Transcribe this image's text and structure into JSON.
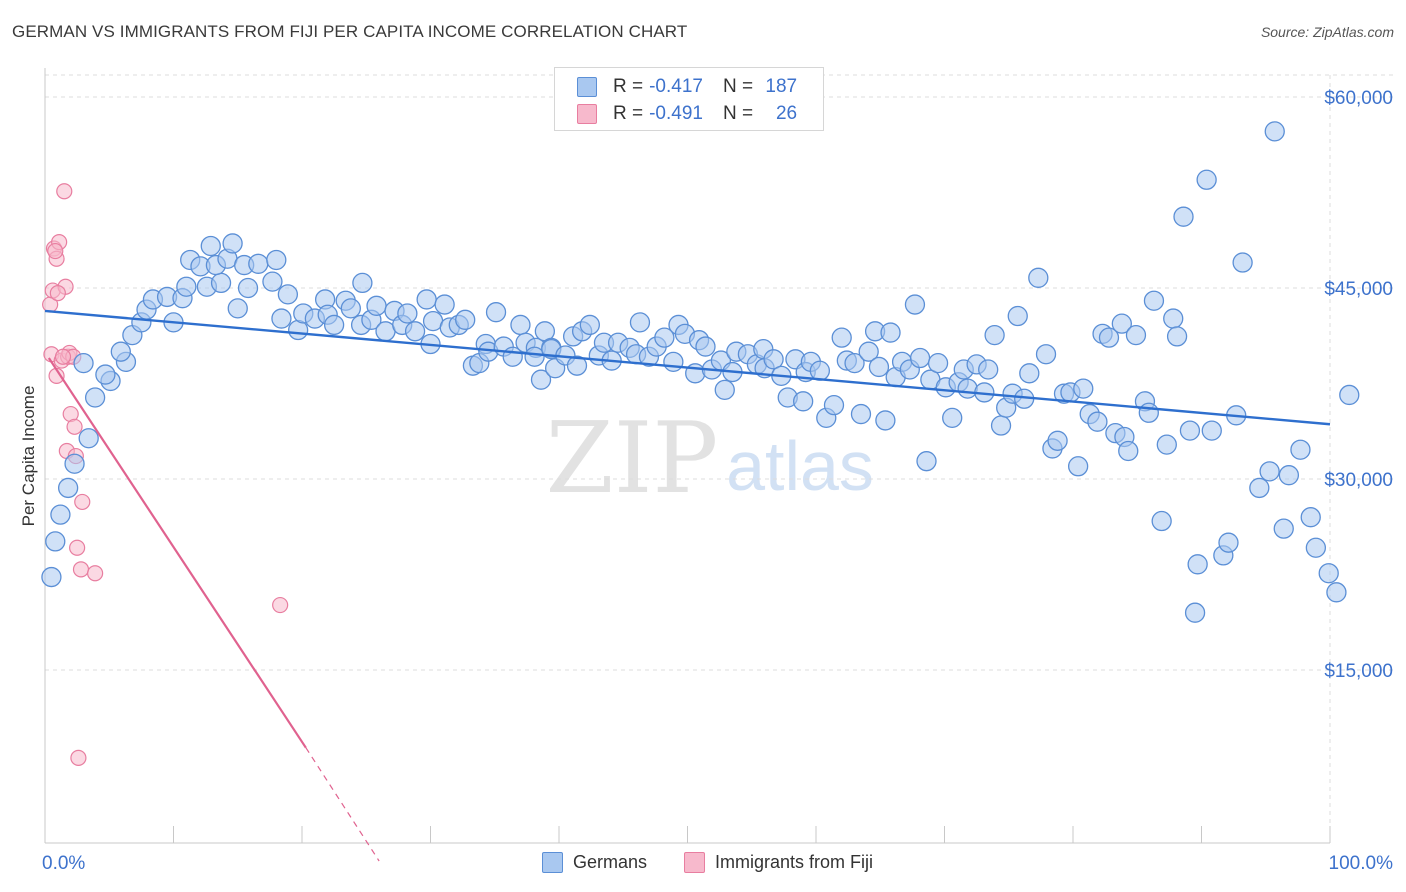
{
  "header": {
    "title": "GERMAN VS IMMIGRANTS FROM FIJI PER CAPITA INCOME CORRELATION CHART",
    "source": "Source: ZipAtlas.com"
  },
  "legend_top": {
    "rows": [
      {
        "r_label": "R =",
        "r_value": "-0.417",
        "n_label": "N =",
        "n_value": "187"
      },
      {
        "r_label": "R =",
        "r_value": "-0.491",
        "n_label": "N =",
        "n_value": "26"
      }
    ]
  },
  "legend_bottom": {
    "items": [
      "Germans",
      "Immigrants from Fiji"
    ]
  },
  "watermark": {
    "zip": "ZIP",
    "atlas": "atlas"
  },
  "colors": {
    "germans_fill": "#a9c8f0",
    "germans_stroke": "#5b8fd6",
    "germans_line": "#2e6fce",
    "fiji_fill": "#f7b9cc",
    "fiji_stroke": "#e87ea0",
    "fiji_line": "#e0628f",
    "tick_label": "#3d72cc",
    "grid": "#dcdcdc"
  },
  "chart_data": {
    "type": "scatter",
    "ylabel": "Per Capita Income",
    "xlabel": "",
    "x_tick_labels": [
      "0.0%",
      "100.0%"
    ],
    "y_ticks": [
      15000,
      30000,
      45000,
      60000
    ],
    "y_tick_labels": [
      "$15,000",
      "$30,000",
      "$45,000",
      "$60,000"
    ],
    "xlim": [
      0,
      100
    ],
    "ylim": [
      1000,
      62500
    ],
    "grid": true,
    "series": [
      {
        "name": "Germans",
        "trend": {
          "x": [
            0,
            100
          ],
          "y": [
            43200,
            34300
          ]
        },
        "points": [
          [
            0.5,
            22300
          ],
          [
            0.8,
            25100
          ],
          [
            1.2,
            27200
          ],
          [
            1.8,
            29300
          ],
          [
            2.3,
            31200
          ],
          [
            3.4,
            33200
          ],
          [
            3.9,
            36400
          ],
          [
            3.0,
            39100
          ],
          [
            5.1,
            37700
          ],
          [
            4.7,
            38200
          ],
          [
            6.3,
            39200
          ],
          [
            5.9,
            40000
          ],
          [
            6.8,
            41300
          ],
          [
            7.5,
            42300
          ],
          [
            7.9,
            43300
          ],
          [
            8.4,
            44100
          ],
          [
            9.5,
            44300
          ],
          [
            10.0,
            42300
          ],
          [
            10.7,
            44200
          ],
          [
            11.0,
            45100
          ],
          [
            11.3,
            47200
          ],
          [
            12.1,
            46700
          ],
          [
            12.6,
            45100
          ],
          [
            12.9,
            48300
          ],
          [
            13.7,
            45400
          ],
          [
            13.3,
            46800
          ],
          [
            14.2,
            47300
          ],
          [
            14.6,
            48500
          ],
          [
            15.5,
            46800
          ],
          [
            15.0,
            43400
          ],
          [
            15.8,
            45000
          ],
          [
            16.6,
            46900
          ],
          [
            17.7,
            45500
          ],
          [
            18.0,
            47200
          ],
          [
            18.4,
            42600
          ],
          [
            18.9,
            44500
          ],
          [
            19.7,
            41700
          ],
          [
            20.1,
            43000
          ],
          [
            21.0,
            42600
          ],
          [
            21.8,
            44100
          ],
          [
            22.0,
            42900
          ],
          [
            22.5,
            42100
          ],
          [
            23.4,
            44000
          ],
          [
            23.8,
            43400
          ],
          [
            24.6,
            42100
          ],
          [
            24.7,
            45400
          ],
          [
            25.4,
            42500
          ],
          [
            25.8,
            43600
          ],
          [
            26.5,
            41600
          ],
          [
            27.2,
            43200
          ],
          [
            27.8,
            42100
          ],
          [
            28.2,
            43000
          ],
          [
            28.8,
            41600
          ],
          [
            29.7,
            44100
          ],
          [
            30.2,
            42400
          ],
          [
            30.0,
            40600
          ],
          [
            31.1,
            43700
          ],
          [
            31.5,
            41900
          ],
          [
            32.2,
            42100
          ],
          [
            32.7,
            42500
          ],
          [
            33.3,
            38900
          ],
          [
            33.8,
            39100
          ],
          [
            34.3,
            40600
          ],
          [
            34.5,
            40000
          ],
          [
            35.1,
            43100
          ],
          [
            35.7,
            40400
          ],
          [
            36.4,
            39600
          ],
          [
            37.0,
            42100
          ],
          [
            37.4,
            40700
          ],
          [
            38.2,
            40300
          ],
          [
            38.1,
            39600
          ],
          [
            38.6,
            37800
          ],
          [
            38.9,
            41600
          ],
          [
            39.4,
            40300
          ],
          [
            39.7,
            38700
          ],
          [
            39.4,
            40200
          ],
          [
            40.5,
            39700
          ],
          [
            41.1,
            41200
          ],
          [
            41.4,
            38900
          ],
          [
            41.8,
            41600
          ],
          [
            42.4,
            42100
          ],
          [
            43.1,
            39700
          ],
          [
            43.5,
            40700
          ],
          [
            44.1,
            39300
          ],
          [
            44.6,
            40700
          ],
          [
            45.5,
            40300
          ],
          [
            46.0,
            39800
          ],
          [
            46.3,
            42300
          ],
          [
            47.0,
            39600
          ],
          [
            47.6,
            40400
          ],
          [
            48.2,
            41100
          ],
          [
            48.9,
            39200
          ],
          [
            49.3,
            42100
          ],
          [
            49.8,
            41400
          ],
          [
            50.6,
            38300
          ],
          [
            50.9,
            40900
          ],
          [
            51.4,
            40400
          ],
          [
            51.9,
            38600
          ],
          [
            52.6,
            39300
          ],
          [
            52.9,
            37000
          ],
          [
            53.5,
            38400
          ],
          [
            53.8,
            40000
          ],
          [
            54.7,
            39800
          ],
          [
            55.4,
            39000
          ],
          [
            55.9,
            40200
          ],
          [
            56.0,
            38700
          ],
          [
            56.7,
            39400
          ],
          [
            57.3,
            38100
          ],
          [
            57.8,
            36400
          ],
          [
            58.4,
            39400
          ],
          [
            59.0,
            36100
          ],
          [
            59.2,
            38400
          ],
          [
            59.6,
            39200
          ],
          [
            60.3,
            38500
          ],
          [
            60.8,
            34800
          ],
          [
            61.4,
            35800
          ],
          [
            62.0,
            41100
          ],
          [
            62.4,
            39300
          ],
          [
            63.0,
            39100
          ],
          [
            63.5,
            35100
          ],
          [
            64.1,
            40000
          ],
          [
            64.6,
            41600
          ],
          [
            64.9,
            38800
          ],
          [
            65.4,
            34600
          ],
          [
            65.8,
            41500
          ],
          [
            66.2,
            38000
          ],
          [
            66.7,
            39200
          ],
          [
            67.3,
            38600
          ],
          [
            67.7,
            43700
          ],
          [
            68.1,
            39500
          ],
          [
            68.6,
            31400
          ],
          [
            68.9,
            37800
          ],
          [
            69.5,
            39100
          ],
          [
            70.1,
            37200
          ],
          [
            70.6,
            34800
          ],
          [
            71.1,
            37600
          ],
          [
            71.5,
            38600
          ],
          [
            71.8,
            37100
          ],
          [
            72.5,
            39000
          ],
          [
            73.1,
            36800
          ],
          [
            73.4,
            38600
          ],
          [
            73.9,
            41300
          ],
          [
            74.4,
            34200
          ],
          [
            74.8,
            35600
          ],
          [
            75.3,
            36700
          ],
          [
            75.7,
            42800
          ],
          [
            76.2,
            36300
          ],
          [
            76.6,
            38300
          ],
          [
            77.3,
            45800
          ],
          [
            77.9,
            39800
          ],
          [
            78.4,
            32400
          ],
          [
            78.8,
            33000
          ],
          [
            79.3,
            36700
          ],
          [
            79.8,
            36800
          ],
          [
            80.4,
            31000
          ],
          [
            80.8,
            37100
          ],
          [
            81.3,
            35100
          ],
          [
            81.9,
            34500
          ],
          [
            82.3,
            41400
          ],
          [
            82.8,
            41100
          ],
          [
            83.3,
            33600
          ],
          [
            83.8,
            42200
          ],
          [
            84.0,
            33300
          ],
          [
            84.3,
            32200
          ],
          [
            84.9,
            41300
          ],
          [
            85.6,
            36100
          ],
          [
            85.9,
            35200
          ],
          [
            86.3,
            44000
          ],
          [
            86.9,
            26700
          ],
          [
            87.3,
            32700
          ],
          [
            87.8,
            42600
          ],
          [
            88.1,
            41200
          ],
          [
            88.6,
            50600
          ],
          [
            89.1,
            33800
          ],
          [
            89.5,
            19500
          ],
          [
            89.7,
            23300
          ],
          [
            90.4,
            53500
          ],
          [
            90.8,
            33800
          ],
          [
            91.7,
            24000
          ],
          [
            92.1,
            25000
          ],
          [
            92.7,
            35000
          ],
          [
            93.2,
            47000
          ],
          [
            94.5,
            29300
          ],
          [
            95.3,
            30600
          ],
          [
            95.7,
            57300
          ],
          [
            96.4,
            26100
          ],
          [
            96.8,
            30300
          ],
          [
            97.7,
            32300
          ],
          [
            98.5,
            27000
          ],
          [
            98.9,
            24600
          ],
          [
            99.9,
            22600
          ],
          [
            100.5,
            21100
          ],
          [
            101.5,
            36600
          ]
        ]
      },
      {
        "name": "Immigrants from Fiji",
        "trend": {
          "x": [
            0.3,
            20.3
          ],
          "y": [
            39500,
            8900
          ]
        },
        "trend_extension": {
          "x": [
            20.3,
            26.0
          ],
          "y": [
            8900,
            0
          ]
        },
        "points": [
          [
            0.4,
            43700
          ],
          [
            0.6,
            44800
          ],
          [
            0.7,
            48100
          ],
          [
            0.9,
            47300
          ],
          [
            1.1,
            48600
          ],
          [
            0.5,
            39800
          ],
          [
            0.9,
            38100
          ],
          [
            1.3,
            39300
          ],
          [
            1.8,
            39600
          ],
          [
            1.6,
            45100
          ],
          [
            1.9,
            39900
          ],
          [
            2.2,
            39600
          ],
          [
            1.5,
            52600
          ],
          [
            2.0,
            35100
          ],
          [
            2.3,
            34100
          ],
          [
            1.7,
            32200
          ],
          [
            2.4,
            31800
          ],
          [
            2.9,
            28200
          ],
          [
            2.5,
            24600
          ],
          [
            2.8,
            22900
          ],
          [
            3.9,
            22600
          ],
          [
            18.3,
            20100
          ],
          [
            2.6,
            8100
          ],
          [
            0.8,
            47900
          ],
          [
            1.0,
            44600
          ],
          [
            1.4,
            39600
          ]
        ]
      }
    ]
  }
}
